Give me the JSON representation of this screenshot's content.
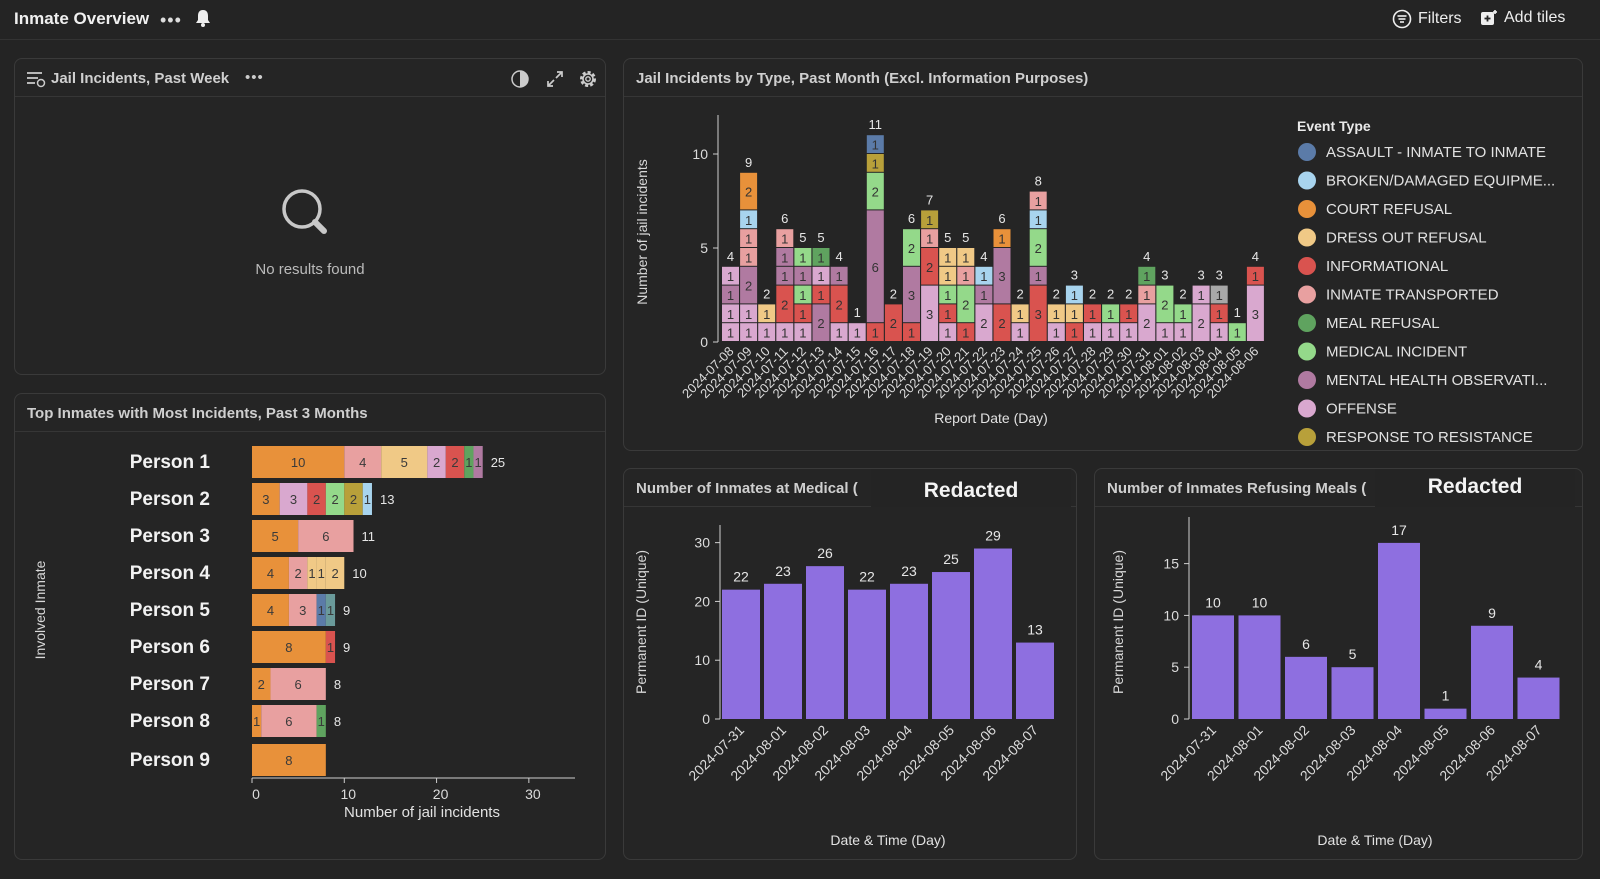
{
  "header": {
    "title": "Inmate Overview",
    "more_icon": "more-horizontal-icon",
    "notify_icon": "bell-icon",
    "filters_label": "Filters",
    "filters_icon": "filter-list-icon",
    "add_tiles_label": "Add tiles",
    "add_tiles_icon": "add-tile-icon"
  },
  "colors": {
    "background": "#242424",
    "court_refusal": "#E8913A",
    "informational": "#D9534F",
    "inmate_transported": "#E8A0A0",
    "dress_out_refusal": "#F0C986",
    "meal_refusal": "#5FA35F",
    "medical_incident": "#94D98A",
    "mental_health": "#B07AA1",
    "offense": "#D9A8CF",
    "response_to_resistance": "#B8A03A",
    "assault": "#5B7BA8",
    "broken_equipment": "#A8D4EE",
    "bar_purple": "#8E6FE0"
  },
  "tile_past_week": {
    "title": "Jail Incidents, Past Week",
    "empty_text": "No results found",
    "icons": [
      "menu-filter-icon",
      "more-horizontal-icon",
      "theme-toggle-icon",
      "expand-icon",
      "gear-icon"
    ]
  },
  "tile_top_inmates": {
    "title": "Top Inmates with Most Incidents, Past 3 Months",
    "chart_data": {
      "type": "bar",
      "orientation": "horizontal",
      "stacked": true,
      "categories": [
        "Person 1",
        "Person 2",
        "Person 3",
        "Person 4",
        "Person 5",
        "Person 6",
        "Person 7",
        "Person 8",
        "Person 9"
      ],
      "totals": [
        25,
        13,
        11,
        10,
        9,
        9,
        8,
        8,
        8
      ],
      "show_totals": [
        true,
        true,
        true,
        true,
        true,
        true,
        true,
        true,
        false
      ],
      "segments": [
        [
          {
            "v": 10,
            "c": "#E8913A"
          },
          {
            "v": 4,
            "c": "#E8A0A0"
          },
          {
            "v": 5,
            "c": "#F0C986"
          },
          {
            "v": 2,
            "c": "#D9A8CF"
          },
          {
            "v": 2,
            "c": "#D9534F"
          },
          {
            "v": 1,
            "c": "#5FA35F"
          },
          {
            "v": 1,
            "c": "#B07AA1"
          }
        ],
        [
          {
            "v": 3,
            "c": "#E8913A"
          },
          {
            "v": 3,
            "c": "#D9A8CF"
          },
          {
            "v": 2,
            "c": "#D9534F"
          },
          {
            "v": 2,
            "c": "#94D98A"
          },
          {
            "v": 2,
            "c": "#B8A03A"
          },
          {
            "v": 1,
            "c": "#A8D4EE"
          }
        ],
        [
          {
            "v": 5,
            "c": "#E8913A"
          },
          {
            "v": 6,
            "c": "#E8A0A0"
          }
        ],
        [
          {
            "v": 4,
            "c": "#E8913A"
          },
          {
            "v": 2,
            "c": "#E8A0A0"
          },
          {
            "v": 1,
            "c": "#F0C986"
          },
          {
            "v": 1,
            "c": "#F0C986"
          },
          {
            "v": 2,
            "c": "#F0C986"
          }
        ],
        [
          {
            "v": 4,
            "c": "#E8913A"
          },
          {
            "v": 3,
            "c": "#E8A0A0"
          },
          {
            "v": 1,
            "c": "#5B7BA8"
          },
          {
            "v": 1,
            "c": "#6A9A9A"
          }
        ],
        [
          {
            "v": 8,
            "c": "#E8913A"
          },
          {
            "v": 1,
            "c": "#D9534F"
          }
        ],
        [
          {
            "v": 2,
            "c": "#E8913A"
          },
          {
            "v": 6,
            "c": "#E8A0A0"
          }
        ],
        [
          {
            "v": 1,
            "c": "#E8913A"
          },
          {
            "v": 6,
            "c": "#E8A0A0"
          },
          {
            "v": 1,
            "c": "#5FA35F"
          }
        ],
        [
          {
            "v": 8,
            "c": "#E8913A"
          }
        ]
      ],
      "xlabel": "Number of jail incidents",
      "ylabel": "Involved Inmate",
      "xticks": [
        0,
        10,
        20,
        30
      ],
      "xlim": [
        0,
        35
      ]
    }
  },
  "tile_by_type": {
    "title": "Jail Incidents by Type, Past Month (Excl. Information Purposes)",
    "chart_data": {
      "type": "bar",
      "stacked": true,
      "x": [
        "2024-07-08",
        "2024-07-09",
        "2024-07-10",
        "2024-07-11",
        "2024-07-12",
        "2024-07-13",
        "2024-07-14",
        "2024-07-15",
        "2024-07-16",
        "2024-07-17",
        "2024-07-18",
        "2024-07-19",
        "2024-07-20",
        "2024-07-21",
        "2024-07-22",
        "2024-07-23",
        "2024-07-24",
        "2024-07-25",
        "2024-07-26",
        "2024-07-27",
        "2024-07-28",
        "2024-07-29",
        "2024-07-30",
        "2024-07-31",
        "2024-08-01",
        "2024-08-02",
        "2024-08-03",
        "2024-08-04",
        "2024-08-05",
        "2024-08-06"
      ],
      "totals": [
        4,
        9,
        2,
        6,
        5,
        5,
        4,
        1,
        11,
        2,
        6,
        7,
        5,
        5,
        4,
        6,
        2,
        8,
        2,
        3,
        2,
        2,
        2,
        4,
        3,
        2,
        3,
        3,
        1,
        4
      ],
      "stacks": [
        [
          {
            "v": 1,
            "c": "#D9A8CF"
          },
          {
            "v": 1,
            "c": "#D9A8CF"
          },
          {
            "v": 1,
            "c": "#B07AA1"
          },
          {
            "v": 1,
            "c": "#D9A8CF"
          }
        ],
        [
          {
            "v": 1,
            "c": "#D9A8CF"
          },
          {
            "v": 1,
            "c": "#D9A8CF"
          },
          {
            "v": 2,
            "c": "#B07AA1"
          },
          {
            "v": 1,
            "c": "#E8A0A0"
          },
          {
            "v": 1,
            "c": "#E8A0A0"
          },
          {
            "v": 1,
            "c": "#A8D4EE"
          },
          {
            "v": 2,
            "c": "#E8913A"
          }
        ],
        [
          {
            "v": 1,
            "c": "#D9A8CF"
          },
          {
            "v": 1,
            "c": "#F0C986"
          }
        ],
        [
          {
            "v": 1,
            "c": "#D9A8CF"
          },
          {
            "v": 2,
            "c": "#D9534F"
          },
          {
            "v": 1,
            "c": "#B07AA1"
          },
          {
            "v": 1,
            "c": "#B07AA1"
          },
          {
            "v": 1,
            "c": "#E8A0A0"
          }
        ],
        [
          {
            "v": 1,
            "c": "#D9A8CF"
          },
          {
            "v": 1,
            "c": "#D9534F"
          },
          {
            "v": 1,
            "c": "#94D98A"
          },
          {
            "v": 1,
            "c": "#B07AA1"
          },
          {
            "v": 1,
            "c": "#94D98A"
          }
        ],
        [
          {
            "v": 2,
            "c": "#B07AA1"
          },
          {
            "v": 1,
            "c": "#D9534F"
          },
          {
            "v": 1,
            "c": "#D9A8CF"
          },
          {
            "v": 1,
            "c": "#5FA35F"
          }
        ],
        [
          {
            "v": 1,
            "c": "#D9A8CF"
          },
          {
            "v": 2,
            "c": "#D9534F"
          },
          {
            "v": 1,
            "c": "#B07AA1"
          }
        ],
        [
          {
            "v": 1,
            "c": "#D9A8CF"
          }
        ],
        [
          {
            "v": 1,
            "c": "#D9534F"
          },
          {
            "v": 6,
            "c": "#B07AA1"
          },
          {
            "v": 2,
            "c": "#94D98A"
          },
          {
            "v": 1,
            "c": "#B8A03A"
          },
          {
            "v": 1,
            "c": "#5B7BA8"
          }
        ],
        [
          {
            "v": 2,
            "c": "#D9534F"
          }
        ],
        [
          {
            "v": 1,
            "c": "#D9534F"
          },
          {
            "v": 3,
            "c": "#B07AA1"
          },
          {
            "v": 2,
            "c": "#94D98A"
          }
        ],
        [
          {
            "v": 3,
            "c": "#D9A8CF"
          },
          {
            "v": 2,
            "c": "#D9534F"
          },
          {
            "v": 1,
            "c": "#E8A0A0"
          },
          {
            "v": 1,
            "c": "#B8A03A"
          }
        ],
        [
          {
            "v": 1,
            "c": "#D9A8CF"
          },
          {
            "v": 1,
            "c": "#D9534F"
          },
          {
            "v": 1,
            "c": "#94D98A"
          },
          {
            "v": 1,
            "c": "#F0C986"
          },
          {
            "v": 1,
            "c": "#F0C986"
          }
        ],
        [
          {
            "v": 1,
            "c": "#D9534F"
          },
          {
            "v": 2,
            "c": "#94D98A"
          },
          {
            "v": 1,
            "c": "#E8A0A0"
          },
          {
            "v": 1,
            "c": "#F0C986"
          }
        ],
        [
          {
            "v": 2,
            "c": "#D9A8CF"
          },
          {
            "v": 1,
            "c": "#B07AA1"
          },
          {
            "v": 1,
            "c": "#A8D4EE"
          }
        ],
        [
          {
            "v": 2,
            "c": "#D9534F"
          },
          {
            "v": 3,
            "c": "#B07AA1"
          },
          {
            "v": 1,
            "c": "#E8913A"
          }
        ],
        [
          {
            "v": 1,
            "c": "#D9A8CF"
          },
          {
            "v": 1,
            "c": "#F0C986"
          }
        ],
        [
          {
            "v": 3,
            "c": "#D9534F"
          },
          {
            "v": 1,
            "c": "#B07AA1"
          },
          {
            "v": 2,
            "c": "#94D98A"
          },
          {
            "v": 1,
            "c": "#A8D4EE"
          },
          {
            "v": 1,
            "c": "#E8A0A0"
          }
        ],
        [
          {
            "v": 1,
            "c": "#D9A8CF"
          },
          {
            "v": 1,
            "c": "#F0C986"
          }
        ],
        [
          {
            "v": 1,
            "c": "#D9534F"
          },
          {
            "v": 1,
            "c": "#F0C986"
          },
          {
            "v": 1,
            "c": "#A8D4EE"
          }
        ],
        [
          {
            "v": 1,
            "c": "#D9A8CF"
          },
          {
            "v": 1,
            "c": "#D9534F"
          }
        ],
        [
          {
            "v": 1,
            "c": "#D9A8CF"
          },
          {
            "v": 1,
            "c": "#94D98A"
          }
        ],
        [
          {
            "v": 1,
            "c": "#D9A8CF"
          },
          {
            "v": 1,
            "c": "#D9534F"
          }
        ],
        [
          {
            "v": 2,
            "c": "#D9A8CF"
          },
          {
            "v": 1,
            "c": "#E8A0A0"
          },
          {
            "v": 1,
            "c": "#5FA35F"
          }
        ],
        [
          {
            "v": 1,
            "c": "#D9A8CF"
          },
          {
            "v": 2,
            "c": "#94D98A"
          }
        ],
        [
          {
            "v": 1,
            "c": "#D9A8CF"
          },
          {
            "v": 1,
            "c": "#94D98A"
          }
        ],
        [
          {
            "v": 2,
            "c": "#D9A8CF"
          },
          {
            "v": 1,
            "c": "#D9A8CF"
          }
        ],
        [
          {
            "v": 1,
            "c": "#D9A8CF"
          },
          {
            "v": 1,
            "c": "#D9534F"
          },
          {
            "v": 1,
            "c": "#A8A8A8"
          }
        ],
        [
          {
            "v": 1,
            "c": "#94D98A"
          }
        ],
        [
          {
            "v": 3,
            "c": "#D9A8CF"
          },
          {
            "v": 1,
            "c": "#D9534F"
          }
        ]
      ],
      "xlabel": "Report Date (Day)",
      "ylabel": "Number of jail incidents",
      "yticks": [
        0,
        5,
        10
      ],
      "ylim": [
        0,
        12.5
      ],
      "legend_title": "Event Type",
      "legend_placement": "right",
      "legend": [
        {
          "name": "ASSAULT - INMATE TO INMATE",
          "color": "#5B7BA8"
        },
        {
          "name": "BROKEN/DAMAGED EQUIPME...",
          "color": "#A8D4EE"
        },
        {
          "name": "COURT REFUSAL",
          "color": "#E8913A"
        },
        {
          "name": "DRESS OUT REFUSAL",
          "color": "#F0C986"
        },
        {
          "name": "INFORMATIONAL",
          "color": "#D9534F"
        },
        {
          "name": "INMATE TRANSPORTED",
          "color": "#E8A0A0"
        },
        {
          "name": "MEAL REFUSAL",
          "color": "#5FA35F"
        },
        {
          "name": "MEDICAL INCIDENT",
          "color": "#94D98A"
        },
        {
          "name": "MENTAL HEALTH OBSERVATI...",
          "color": "#B07AA1"
        },
        {
          "name": "OFFENSE",
          "color": "#D9A8CF"
        },
        {
          "name": "RESPONSE TO RESISTANCE",
          "color": "#B8A03A"
        }
      ]
    }
  },
  "tile_medical": {
    "title": "Number of Inmates at Medical (",
    "redacted_label": "Redacted",
    "chart_data": {
      "type": "bar",
      "categories": [
        "2024-07-31",
        "2024-08-01",
        "2024-08-02",
        "2024-08-03",
        "2024-08-04",
        "2024-08-05",
        "2024-08-06",
        "2024-08-07"
      ],
      "values": [
        22,
        23,
        26,
        22,
        23,
        25,
        29,
        13
      ],
      "xlabel": "Date & Time (Day)",
      "ylabel": "Permanent ID (Unique)",
      "yticks": [
        0,
        10,
        20,
        30
      ],
      "ylim": [
        0,
        33
      ]
    }
  },
  "tile_meals": {
    "title": "Number of Inmates Refusing Meals (",
    "redacted_label": "Redacted",
    "chart_data": {
      "type": "bar",
      "categories": [
        "2024-07-31",
        "2024-08-01",
        "2024-08-02",
        "2024-08-03",
        "2024-08-04",
        "2024-08-05",
        "2024-08-06",
        "2024-08-07"
      ],
      "values": [
        10,
        10,
        6,
        5,
        17,
        1,
        9,
        4
      ],
      "xlabel": "Date & Time (Day)",
      "ylabel": "Permanent ID (Unique)",
      "yticks": [
        0,
        5,
        10,
        15
      ],
      "ylim": [
        0,
        19.5
      ]
    }
  }
}
